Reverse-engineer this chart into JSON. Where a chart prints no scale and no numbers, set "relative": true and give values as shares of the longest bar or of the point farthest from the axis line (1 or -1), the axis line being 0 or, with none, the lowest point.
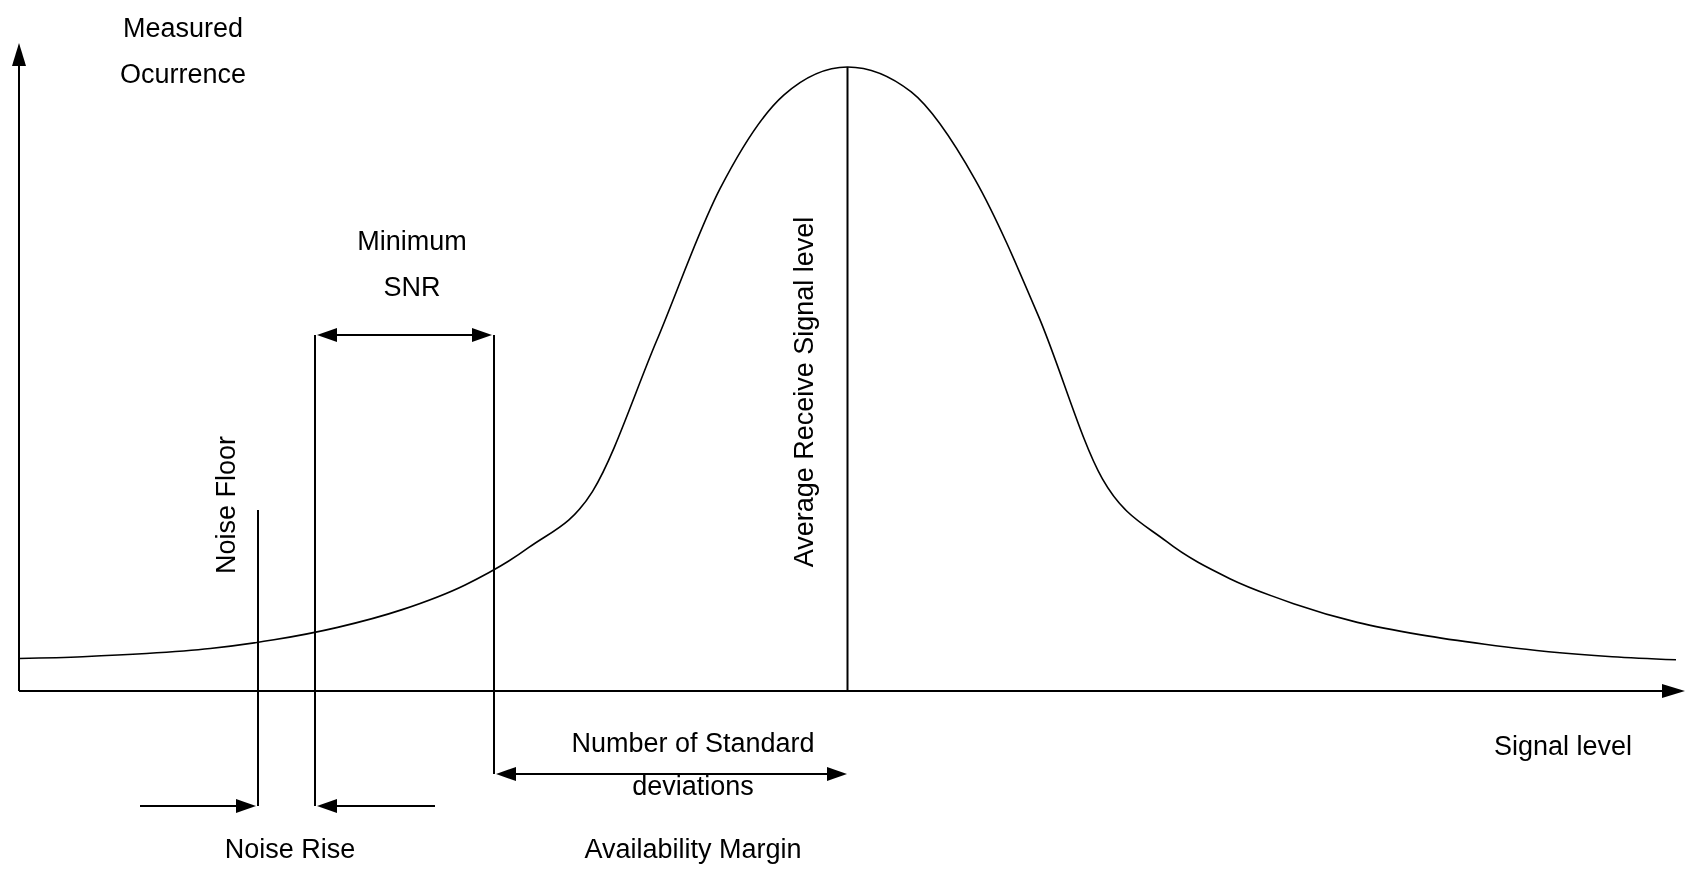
{
  "chart_data": {
    "type": "line",
    "relative": true,
    "tick_labels": false,
    "xlabel": "Signal level",
    "ylabel": "Measured Ocurrence",
    "categories": [
      null,
      null,
      null,
      null,
      null,
      null,
      null,
      null,
      null,
      null,
      null,
      null,
      null,
      null,
      null,
      null,
      null,
      null,
      null,
      null,
      null,
      null,
      null,
      null,
      null,
      null,
      null
    ],
    "series": [
      {
        "color": "#000000",
        "values": [
          0.052,
          0.055,
          0.06,
          0.068,
          0.082,
          0.102,
          0.13,
          0.17,
          0.23,
          0.32,
          0.56,
          0.805,
          0.955,
          1,
          0.96,
          0.82,
          0.6,
          0.34,
          0.24,
          0.18,
          0.14,
          0.11,
          0.09,
          0.075,
          0.063,
          0.055,
          0.05
        ]
      }
    ],
    "annotations": [
      "Minimum SNR",
      "Noise Floor",
      "Average Receive Signal level",
      "Number of Standard deviations",
      "Noise Rise",
      "Availability Margin"
    ]
  }
}
